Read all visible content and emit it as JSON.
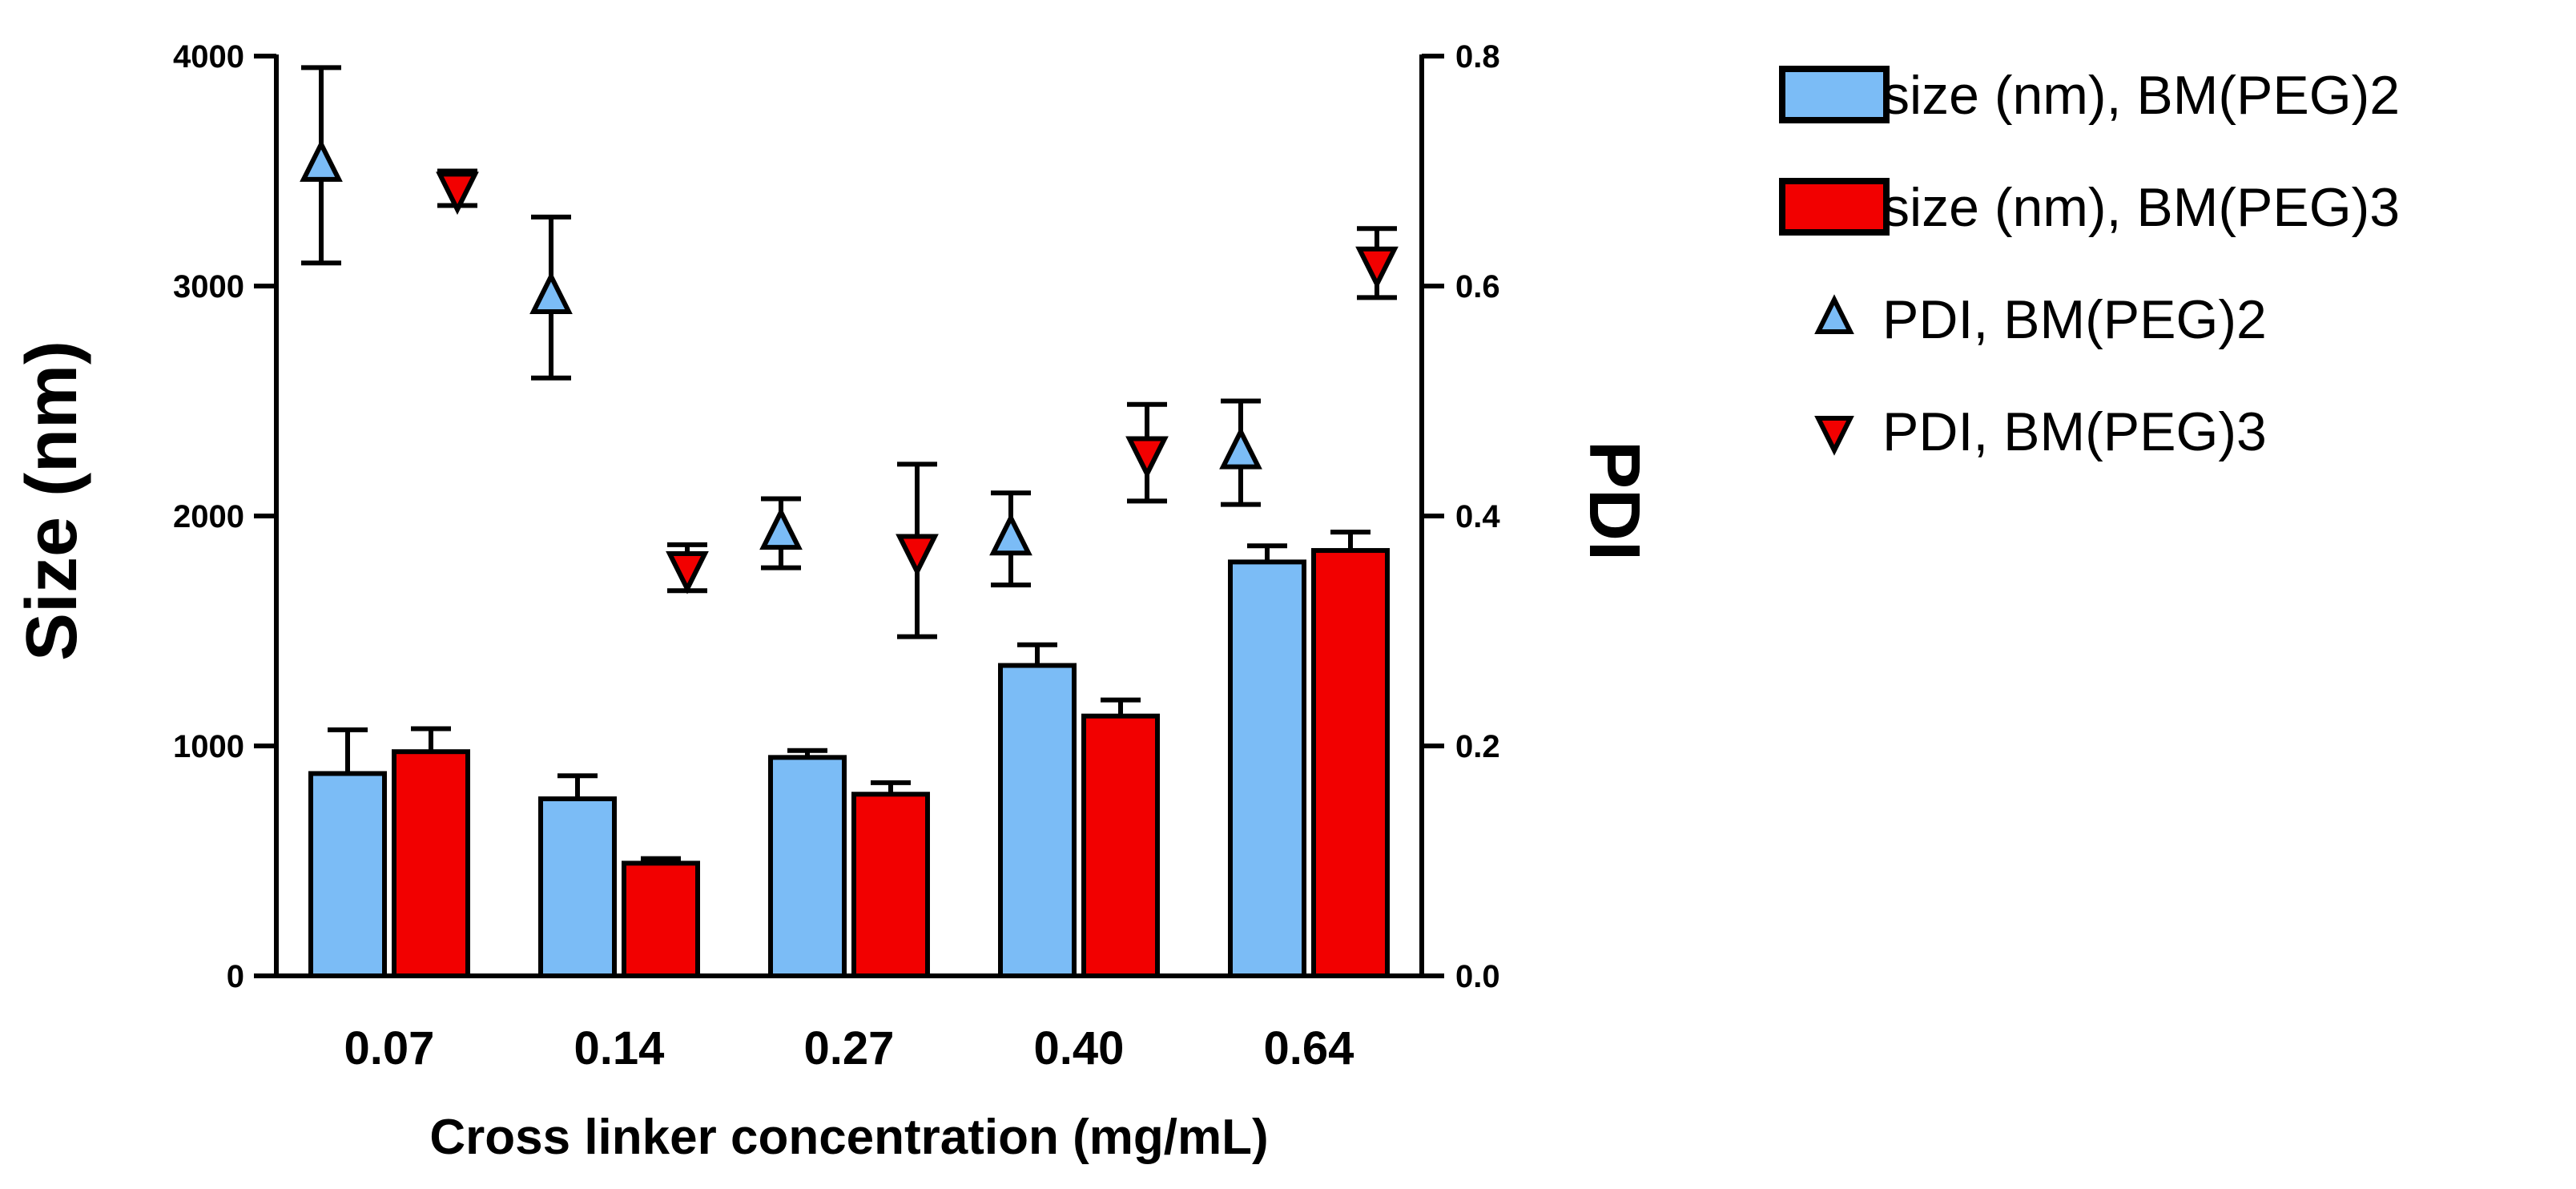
{
  "chart_data": {
    "type": "bar",
    "xlabel": "Cross linker concentration (mg/mL)",
    "ylabel": "Size (nm)",
    "y2label": "PDI",
    "categories": [
      "0.07",
      "0.14",
      "0.27",
      "0.40",
      "0.64"
    ],
    "ylim": [
      0,
      4000
    ],
    "yticks": [
      "0",
      "1000",
      "2000",
      "3000",
      "4000"
    ],
    "y2lim": [
      0,
      0.8
    ],
    "y2ticks": [
      "0.0",
      "0.2",
      "0.4",
      "0.6",
      "0.8"
    ],
    "grid": false,
    "legend_position": "top-right",
    "series": [
      {
        "name": "size (nm), BM(PEG)2",
        "kind": "bar",
        "axis": "left",
        "color": "#7bbcf6",
        "values": [
          880,
          770,
          950,
          1350,
          1800
        ],
        "errors": [
          190,
          100,
          30,
          90,
          70
        ]
      },
      {
        "name": "size (nm), BM(PEG)3",
        "kind": "bar",
        "axis": "left",
        "color": "#f20000",
        "values": [
          975,
          490,
          790,
          1130,
          1850
        ],
        "errors": [
          100,
          20,
          50,
          70,
          80
        ]
      },
      {
        "name": "PDI, BM(PEG)2",
        "kind": "scatter",
        "marker": "triangle-up",
        "axis": "right",
        "color": "#7bbcf6",
        "values": [
          0.705,
          0.59,
          0.385,
          0.38,
          0.455
        ],
        "errors": [
          0.085,
          0.07,
          0.03,
          0.04,
          0.045
        ]
      },
      {
        "name": "PDI, BM(PEG)3",
        "kind": "scatter",
        "marker": "triangle-down",
        "axis": "right",
        "color": "#f20000",
        "values": [
          0.685,
          0.355,
          0.37,
          0.455,
          0.62
        ],
        "errors": [
          0.015,
          0.02,
          0.075,
          0.042,
          0.03
        ]
      }
    ]
  }
}
